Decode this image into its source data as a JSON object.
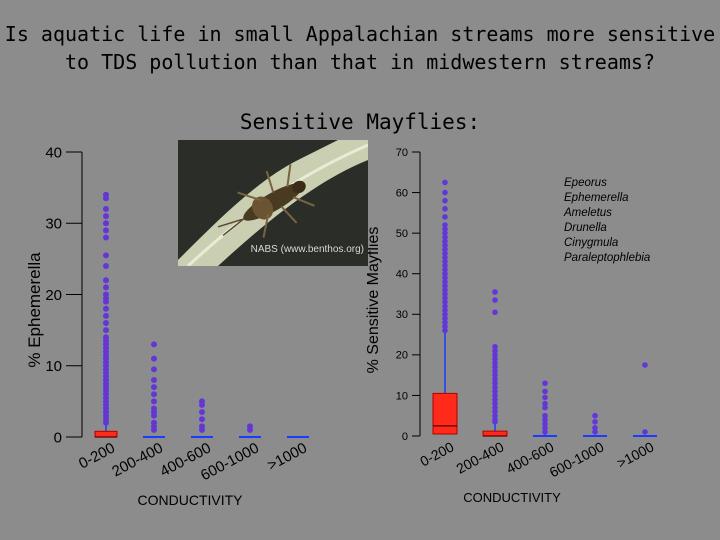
{
  "title_line1": "Is aquatic life in small Appalachian streams more sensitive",
  "title_line2": "to TDS pollution than that in midwestern streams?",
  "subtitle": "Sensitive Mayflies:",
  "photo_credit": "NABS (www.benthos.org)",
  "colors": {
    "background": "#8c8c8c",
    "box": "#ff2a1a",
    "points": "#7b2fbe",
    "whisker": "#1a3cff",
    "mean": "#ff2a1a"
  },
  "chart_data": [
    {
      "type": "box",
      "title": "",
      "xlabel": "CONDUCTIVITY",
      "ylabel": "% Ephemerella",
      "ylim": [
        0,
        40
      ],
      "yticks": [
        "0",
        "10",
        "20",
        "30",
        "40"
      ],
      "categories": [
        "0-200",
        "200-400",
        "400-600",
        "600-1000",
        ">1000"
      ],
      "boxes": [
        {
          "q1": 0,
          "median": 0,
          "q3": 0.8,
          "whisker_low": 0,
          "whisker_high": 2
        },
        {
          "q1": 0,
          "median": 0,
          "q3": 0,
          "whisker_low": 0,
          "whisker_high": 0
        },
        {
          "q1": 0,
          "median": 0,
          "q3": 0,
          "whisker_low": 0,
          "whisker_high": 0
        },
        {
          "q1": 0,
          "median": 0,
          "q3": 0,
          "whisker_low": 0,
          "whisker_high": 0
        },
        {
          "q1": 0,
          "median": 0,
          "q3": 0,
          "whisker_low": 0,
          "whisker_high": 0
        }
      ],
      "outliers": [
        [
          2,
          2.5,
          3,
          3.5,
          4,
          4.5,
          5,
          5.5,
          6,
          6.5,
          7,
          7.5,
          8,
          8.5,
          9,
          9.5,
          10,
          10.5,
          11,
          11.5,
          12,
          12.5,
          13,
          13.5,
          14,
          15,
          16,
          17,
          18,
          19,
          19.5,
          20,
          21,
          22,
          24,
          25.5,
          28,
          29,
          30,
          31,
          32,
          33.5,
          34
        ],
        [
          1,
          1.5,
          2,
          3,
          3.5,
          4,
          5,
          6,
          7,
          8,
          9.5,
          11,
          13
        ],
        [
          1,
          1.5,
          2.5,
          3.5,
          4.5,
          5
        ],
        [
          1,
          1.5
        ],
        []
      ]
    },
    {
      "type": "box",
      "title": "",
      "xlabel": "CONDUCTIVITY",
      "ylabel": "% Sensitive Mayflies",
      "ylim": [
        0,
        70
      ],
      "yticks": [
        "0",
        "10",
        "20",
        "30",
        "40",
        "50",
        "60",
        "70"
      ],
      "categories": [
        "0-200",
        "200-400",
        "400-600",
        "600-1000",
        ">1000"
      ],
      "legend_text": [
        "Epeorus",
        "Ephemerella",
        "Ameletus",
        "Drunella",
        "Cinygmula",
        "Paraleptophlebia"
      ],
      "boxes": [
        {
          "q1": 0.5,
          "median": 2.5,
          "q3": 10.5,
          "whisker_low": 0,
          "whisker_high": 26
        },
        {
          "q1": 0,
          "median": 0,
          "q3": 1.2,
          "whisker_low": 0,
          "whisker_high": 3
        },
        {
          "q1": 0,
          "median": 0,
          "q3": 0,
          "whisker_low": 0,
          "whisker_high": 0.5
        },
        {
          "q1": 0,
          "median": 0,
          "q3": 0,
          "whisker_low": 0,
          "whisker_high": 0
        },
        {
          "q1": 0,
          "median": 0,
          "q3": 0,
          "whisker_low": 0,
          "whisker_high": 0
        }
      ],
      "outliers": [
        [
          26,
          27,
          28,
          29,
          30,
          31,
          32,
          33,
          34,
          35,
          36,
          37,
          38,
          39,
          40,
          41,
          42,
          43,
          44,
          45,
          46,
          47,
          48,
          49,
          50,
          51,
          52,
          54,
          56,
          58,
          60,
          62.5
        ],
        [
          3.5,
          4,
          5,
          6,
          7,
          8,
          9,
          10,
          11,
          12,
          13,
          14,
          15,
          16,
          17,
          18,
          19,
          20,
          21,
          22,
          30.5,
          33.5,
          35.5
        ],
        [
          1,
          2,
          3,
          4,
          5,
          7,
          8,
          9.5,
          11,
          13
        ],
        [
          1,
          2,
          3.5,
          5
        ],
        [
          1,
          17.5
        ]
      ]
    }
  ]
}
